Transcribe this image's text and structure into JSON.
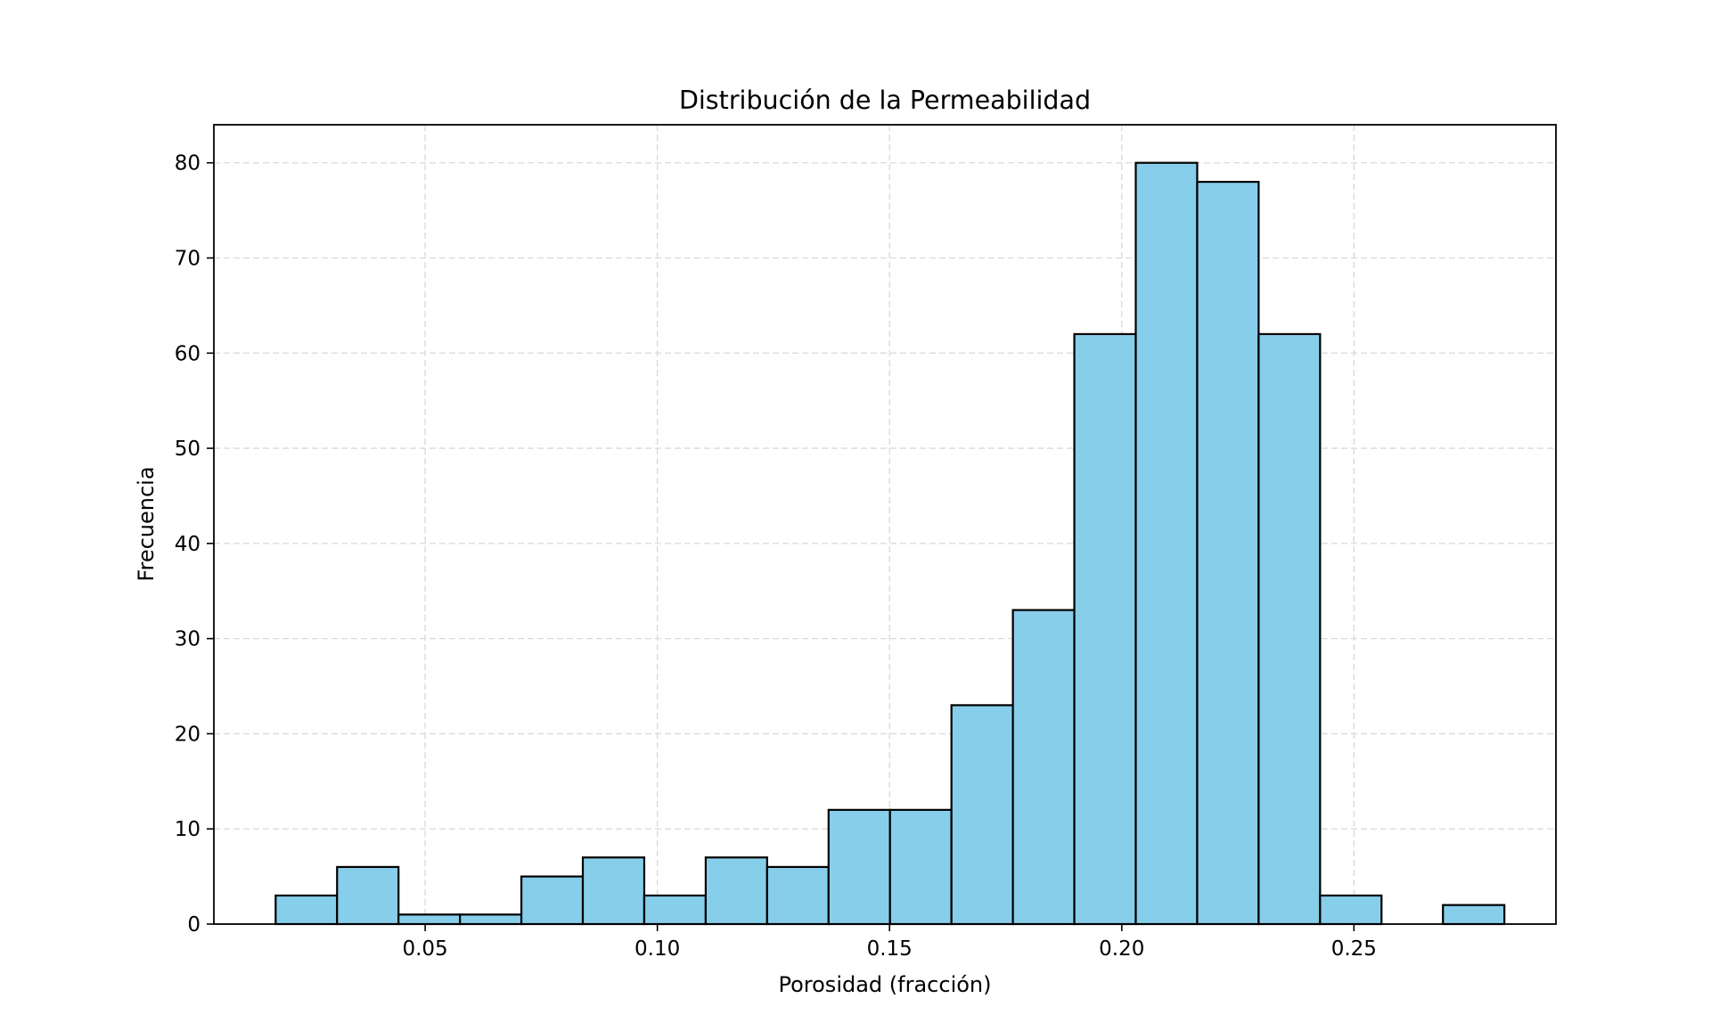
{
  "chart_data": {
    "type": "bar",
    "title": "Distribución de la Permeabilidad",
    "xlabel": "Porosidad (fracción)",
    "ylabel": "Frecuencia",
    "xlim": [
      0.0045,
      0.2935
    ],
    "ylim": [
      0,
      84
    ],
    "x_ticks": [
      0.05,
      0.1,
      0.15,
      0.2,
      0.25
    ],
    "x_tick_labels": [
      "0.05",
      "0.10",
      "0.15",
      "0.20",
      "0.25"
    ],
    "y_ticks": [
      0,
      10,
      20,
      30,
      40,
      50,
      60,
      70,
      80
    ],
    "y_tick_labels": [
      "0",
      "10",
      "20",
      "30",
      "40",
      "50",
      "60",
      "70",
      "80"
    ],
    "bin_start": 0.0178,
    "bin_width": 0.01323,
    "values": [
      3,
      6,
      1,
      1,
      5,
      7,
      3,
      7,
      6,
      12,
      12,
      23,
      33,
      62,
      80,
      78,
      62,
      3,
      0,
      2
    ],
    "bar_color": "#87ceeb",
    "edge_color": "#000000",
    "grid": true,
    "grid_style": "dashed",
    "legend": "none"
  }
}
